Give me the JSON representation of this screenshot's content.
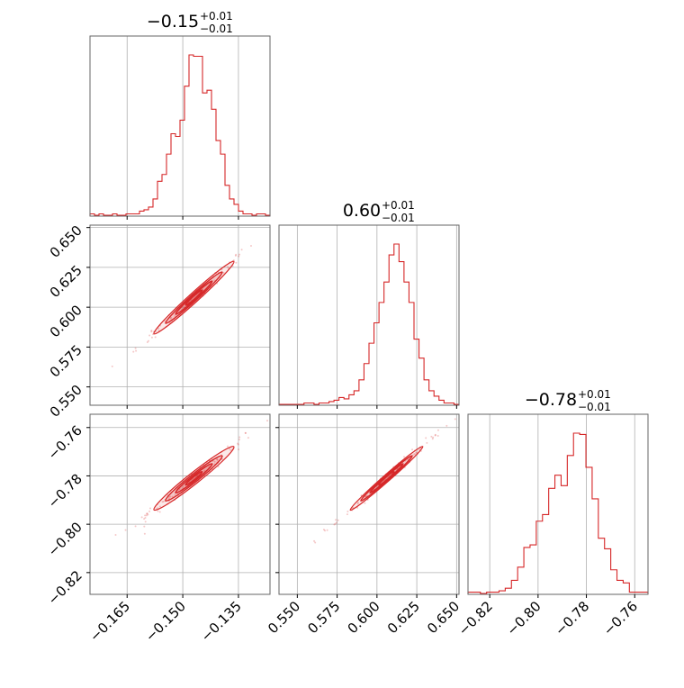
{
  "chart_data": {
    "type": "corner",
    "color": "#d62728",
    "grid": true,
    "parameters": [
      {
        "title_value": "−0.15",
        "title_plus": "+0.01",
        "title_minus": "−0.01",
        "range": [
          -0.175,
          -0.1265
        ],
        "ticks": [
          -0.165,
          -0.15,
          -0.135
        ],
        "tick_labels": [
          "−0.165",
          "−0.150",
          "−0.135"
        ],
        "median": -0.147,
        "sigma": 0.0045
      },
      {
        "title_value": "0.60",
        "title_plus": "+0.01",
        "title_minus": "−0.01",
        "range": [
          0.5385,
          0.6515
        ],
        "ticks": [
          0.55,
          0.575,
          0.6,
          0.625,
          0.65
        ],
        "tick_labels": [
          "0.550",
          "0.575",
          "0.600",
          "0.625",
          "0.650"
        ],
        "median": 0.606,
        "sigma": 0.0095
      },
      {
        "title_value": "−0.78",
        "title_plus": "+0.01",
        "title_minus": "−0.01",
        "range": [
          -0.829,
          -0.7545
        ],
        "ticks": [
          -0.82,
          -0.8,
          -0.78,
          -0.76
        ],
        "tick_labels": [
          "−0.82",
          "−0.80",
          "−0.78",
          "−0.76"
        ],
        "median": -0.781,
        "sigma": 0.0055
      }
    ],
    "histograms": [
      {
        "bin_range": [
          -0.175,
          -0.1265
        ],
        "counts": [
          1,
          0,
          1,
          0,
          0,
          1,
          0,
          0,
          1,
          1,
          1,
          3,
          4,
          6,
          12,
          25,
          30,
          45,
          60,
          58,
          70,
          95,
          118,
          117,
          117,
          90,
          92,
          78,
          55,
          45,
          22,
          12,
          8,
          3,
          1,
          1,
          0,
          1,
          1,
          0
        ]
      },
      {
        "bin_range": [
          0.5385,
          0.6515
        ],
        "counts": [
          0,
          0,
          0,
          0,
          0,
          1,
          1,
          0,
          1,
          1,
          2,
          3,
          5,
          4,
          7,
          10,
          18,
          30,
          45,
          60,
          75,
          90,
          110,
          118,
          105,
          90,
          75,
          48,
          34,
          18,
          10,
          6,
          3,
          1,
          1,
          0
        ]
      },
      {
        "bin_range": [
          -0.829,
          -0.7545
        ],
        "counts": [
          1,
          1,
          0,
          1,
          1,
          2,
          4,
          10,
          20,
          35,
          37,
          55,
          60,
          80,
          90,
          82,
          105,
          122,
          121,
          96,
          72,
          42,
          34,
          18,
          10,
          8,
          1,
          1,
          1
        ]
      }
    ],
    "correlation": {
      "p1_p2": 0.985,
      "p1_p3": 0.975,
      "p2_p3": 0.99
    }
  }
}
